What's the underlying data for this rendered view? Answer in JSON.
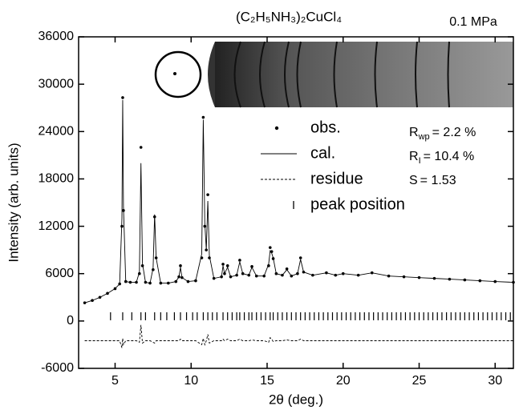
{
  "chart_data": {
    "type": "scatter",
    "title": "(C₂H₅NH₃)₂CuCl₄",
    "subtitle": "0.1 MPa",
    "x_label": "2θ (deg.)",
    "y_label": "Intensity (arb. units)",
    "xlim": [
      2.6,
      31.2
    ],
    "ylim": [
      -6000,
      36000
    ],
    "xticks": [
      5,
      10,
      15,
      20,
      25,
      30
    ],
    "yticks": [
      -6000,
      0,
      6000,
      12000,
      18000,
      24000,
      30000,
      36000
    ],
    "x": [
      3,
      3.5,
      4,
      4.5,
      5,
      5.3,
      5.45,
      5.5,
      5.55,
      5.7,
      6,
      6.4,
      6.6,
      6.7,
      6.8,
      7,
      7.3,
      7.5,
      7.6,
      7.7,
      8,
      8.5,
      9,
      9.2,
      9.3,
      9.4,
      9.8,
      10.3,
      10.7,
      10.8,
      10.9,
      11.0,
      11.1,
      11.2,
      11.5,
      12,
      12.1,
      12.2,
      12.4,
      12.6,
      13,
      13.2,
      13.4,
      13.8,
      14,
      14.3,
      14.8,
      15.1,
      15.2,
      15.3,
      15.4,
      15.6,
      16,
      16.3,
      16.6,
      17,
      17.2,
      17.4,
      18,
      18.9,
      19.5,
      20,
      21,
      21.9,
      23,
      24,
      25,
      26,
      27,
      28,
      29,
      30,
      31.2
    ],
    "series": [
      {
        "name": "obs.",
        "style": "points",
        "color": "#000000",
        "values": [
          2300,
          2600,
          3000,
          3500,
          4100,
          4700,
          12000,
          28300,
          14000,
          5000,
          4900,
          4900,
          6000,
          22000,
          7000,
          4900,
          4800,
          6500,
          13200,
          8000,
          4800,
          4800,
          5000,
          5600,
          7000,
          5500,
          5000,
          5100,
          8000,
          25800,
          12000,
          9000,
          16000,
          8000,
          5400,
          5600,
          7200,
          6000,
          7000,
          5600,
          5800,
          7700,
          6000,
          5800,
          6900,
          5700,
          5700,
          7000,
          9300,
          8800,
          7900,
          6000,
          5800,
          6600,
          5700,
          6000,
          8000,
          6200,
          5800,
          6100,
          5800,
          6000,
          5800,
          6100,
          5700,
          5600,
          5500,
          5400,
          5300,
          5200,
          5100,
          5000,
          4900
        ]
      },
      {
        "name": "cal.",
        "style": "line",
        "color": "#000000",
        "values": [
          2300,
          2600,
          3000,
          3500,
          4100,
          4700,
          13000,
          28000,
          14500,
          5000,
          4900,
          4900,
          6200,
          20000,
          7300,
          4900,
          4800,
          6700,
          13500,
          8000,
          4800,
          4800,
          5000,
          5600,
          6800,
          5500,
          5000,
          5100,
          8500,
          25500,
          12500,
          9000,
          15200,
          8300,
          5400,
          5600,
          7000,
          6000,
          6800,
          5600,
          5800,
          7500,
          6000,
          5800,
          6800,
          5700,
          5700,
          7200,
          8900,
          8600,
          8000,
          6000,
          5800,
          6500,
          5700,
          6000,
          7800,
          6200,
          5800,
          6100,
          5800,
          6000,
          5800,
          6100,
          5700,
          5600,
          5500,
          5400,
          5300,
          5200,
          5100,
          5000,
          4900
        ]
      },
      {
        "name": "residue",
        "style": "dashed",
        "color": "#000000",
        "values": [
          -2500,
          -2500,
          -2500,
          -2500,
          -2500,
          -2500,
          -3400,
          -2200,
          -3000,
          -2500,
          -2500,
          -2500,
          -2700,
          -500,
          -2800,
          -2500,
          -2500,
          -2700,
          -2800,
          -2500,
          -2500,
          -2500,
          -2500,
          -2500,
          -2300,
          -2500,
          -2500,
          -2500,
          -3000,
          -2200,
          -3000,
          -2500,
          -1700,
          -2800,
          -2500,
          -2500,
          -2300,
          -2500,
          -2300,
          -2500,
          -2500,
          -2300,
          -2500,
          -2500,
          -2400,
          -2500,
          -2500,
          -2700,
          -2100,
          -2300,
          -2600,
          -2500,
          -2500,
          -2400,
          -2500,
          -2500,
          -2300,
          -2500,
          -2500,
          -2500,
          -2500,
          -2500,
          -2500,
          -2500,
          -2500,
          -2500,
          -2500,
          -2500,
          -2500,
          -2500,
          -2500,
          -2500,
          -2500
        ]
      },
      {
        "name": "peak position",
        "style": "ticks",
        "color": "#000000",
        "level": 600,
        "x": [
          4.7,
          5.5,
          6.1,
          6.7,
          7.0,
          7.6,
          8.0,
          8.4,
          8.9,
          9.3,
          9.7,
          10.1,
          10.4,
          10.8,
          11.1,
          11.4,
          11.7,
          12.1,
          12.4,
          12.7,
          13.0,
          13.2,
          13.5,
          13.8,
          14.0,
          14.3,
          14.6,
          14.9,
          15.2,
          15.4,
          15.7,
          16.0,
          16.3,
          16.6,
          16.9,
          17.2,
          17.5,
          17.8,
          18.1,
          18.4,
          18.7,
          19.0,
          19.3,
          19.6,
          19.9,
          20.2,
          20.5,
          20.8,
          21.1,
          21.4,
          21.7,
          22.0,
          22.3,
          22.6,
          22.9,
          23.2,
          23.5,
          23.8,
          24.1,
          24.4,
          24.7,
          25.0,
          25.3,
          25.6,
          25.9,
          26.2,
          26.5,
          26.8,
          27.1,
          27.4,
          27.7,
          28.0,
          28.3,
          28.6,
          28.9,
          29.2,
          29.5,
          29.8,
          30.1,
          30.4,
          30.7,
          31.0
        ]
      }
    ],
    "annotations": [
      {
        "symbol": "R",
        "sub": "wp",
        "text": "= 2.2 %"
      },
      {
        "symbol": "R",
        "sub": "I",
        "text": "= 10.4 %"
      },
      {
        "symbol": "S",
        "sub": "",
        "text": "= 1.53"
      }
    ]
  }
}
